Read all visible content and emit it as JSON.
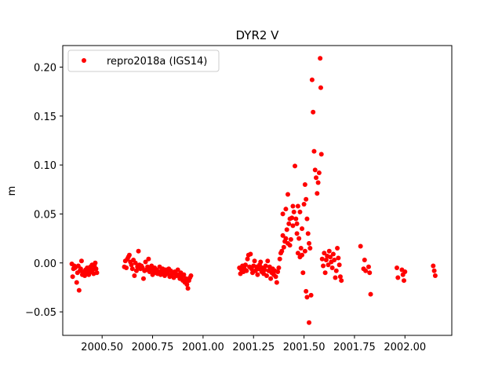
{
  "chart_data": {
    "type": "scatter",
    "title": "DYR2 V",
    "xlabel": "",
    "ylabel": "m",
    "xlim": [
      2000.305,
      2002.232
    ],
    "ylim": [
      -0.074,
      0.222
    ],
    "xticks": [
      2000.5,
      2000.75,
      2001.0,
      2001.25,
      2001.5,
      2001.75,
      2002.0
    ],
    "xtick_labels": [
      "2000.50",
      "2000.75",
      "2001.00",
      "2001.25",
      "2001.50",
      "2001.75",
      "2002.00"
    ],
    "yticks": [
      -0.05,
      0.0,
      0.05,
      0.1,
      0.15,
      0.2
    ],
    "ytick_labels": [
      "−0.05",
      "0.00",
      "0.05",
      "0.10",
      "0.15",
      "0.20"
    ],
    "grid": false,
    "legend_position": "top-left",
    "series": [
      {
        "name": "repro2018a (IGS14)",
        "color": "#ff0000",
        "marker": "circle",
        "points": [
          [
            2000.35,
            -0.001
          ],
          [
            2000.354,
            -0.014
          ],
          [
            2000.358,
            -0.006
          ],
          [
            2000.362,
            -0.003
          ],
          [
            2000.366,
            -0.005
          ],
          [
            2000.37,
            -0.004
          ],
          [
            2000.374,
            -0.02
          ],
          [
            2000.378,
            -0.01
          ],
          [
            2000.382,
            -0.003
          ],
          [
            2000.386,
            -0.028
          ],
          [
            2000.39,
            -0.008
          ],
          [
            2000.394,
            -0.006
          ],
          [
            2000.398,
            0.002
          ],
          [
            2000.402,
            -0.012
          ],
          [
            2000.406,
            -0.01
          ],
          [
            2000.41,
            -0.009
          ],
          [
            2000.414,
            -0.013
          ],
          [
            2000.418,
            -0.007
          ],
          [
            2000.422,
            -0.011
          ],
          [
            2000.426,
            -0.005
          ],
          [
            2000.43,
            -0.008
          ],
          [
            2000.434,
            -0.012
          ],
          [
            2000.438,
            -0.006
          ],
          [
            2000.442,
            -0.004
          ],
          [
            2000.446,
            -0.009
          ],
          [
            2000.45,
            -0.002
          ],
          [
            2000.454,
            -0.007
          ],
          [
            2000.458,
            -0.011
          ],
          [
            2000.462,
            -0.003
          ],
          [
            2000.466,
            0.0
          ],
          [
            2000.47,
            -0.006
          ],
          [
            2000.474,
            -0.01
          ],
          [
            2000.61,
            -0.004
          ],
          [
            2000.615,
            0.002
          ],
          [
            2000.62,
            -0.005
          ],
          [
            2000.625,
            0.004
          ],
          [
            2000.63,
            0.006
          ],
          [
            2000.635,
            0.008
          ],
          [
            2000.64,
            0.001
          ],
          [
            2000.645,
            -0.002
          ],
          [
            2000.65,
            -0.006
          ],
          [
            2000.655,
            0.003
          ],
          [
            2000.66,
            -0.013
          ],
          [
            2000.665,
            0.0
          ],
          [
            2000.67,
            -0.008
          ],
          [
            2000.675,
            -0.004
          ],
          [
            2000.68,
            0.012
          ],
          [
            2000.685,
            -0.002
          ],
          [
            2000.69,
            -0.006
          ],
          [
            2000.695,
            -0.003
          ],
          [
            2000.7,
            -0.005
          ],
          [
            2000.705,
            -0.016
          ],
          [
            2000.71,
            -0.008
          ],
          [
            2000.715,
            0.001
          ],
          [
            2000.72,
            -0.007
          ],
          [
            2000.725,
            -0.004
          ],
          [
            2000.73,
            0.004
          ],
          [
            2000.735,
            -0.009
          ],
          [
            2000.74,
            -0.006
          ],
          [
            2000.745,
            -0.003
          ],
          [
            2000.75,
            -0.012
          ],
          [
            2000.755,
            -0.008
          ],
          [
            2000.76,
            -0.005
          ],
          [
            2000.765,
            -0.01
          ],
          [
            2000.77,
            -0.007
          ],
          [
            2000.775,
            -0.011
          ],
          [
            2000.78,
            -0.009
          ],
          [
            2000.785,
            -0.004
          ],
          [
            2000.79,
            -0.012
          ],
          [
            2000.795,
            -0.008
          ],
          [
            2000.8,
            -0.006
          ],
          [
            2000.805,
            -0.01
          ],
          [
            2000.81,
            -0.013
          ],
          [
            2000.815,
            -0.007
          ],
          [
            2000.82,
            -0.009
          ],
          [
            2000.825,
            -0.011
          ],
          [
            2000.83,
            -0.006
          ],
          [
            2000.835,
            -0.014
          ],
          [
            2000.84,
            -0.008
          ],
          [
            2000.845,
            -0.012
          ],
          [
            2000.85,
            -0.01
          ],
          [
            2000.855,
            -0.015
          ],
          [
            2000.86,
            -0.009
          ],
          [
            2000.865,
            -0.011
          ],
          [
            2000.87,
            -0.013
          ],
          [
            2000.875,
            -0.007
          ],
          [
            2000.88,
            -0.012
          ],
          [
            2000.885,
            -0.016
          ],
          [
            2000.89,
            -0.01
          ],
          [
            2000.895,
            -0.014
          ],
          [
            2000.9,
            -0.018
          ],
          [
            2000.905,
            -0.012
          ],
          [
            2000.91,
            -0.02
          ],
          [
            2000.915,
            -0.016
          ],
          [
            2000.92,
            -0.022
          ],
          [
            2000.925,
            -0.026
          ],
          [
            2000.93,
            -0.018
          ],
          [
            2000.935,
            -0.015
          ],
          [
            2000.94,
            -0.013
          ],
          [
            2001.18,
            -0.005
          ],
          [
            2001.185,
            -0.011
          ],
          [
            2001.19,
            -0.007
          ],
          [
            2001.195,
            -0.003
          ],
          [
            2001.2,
            -0.009
          ],
          [
            2001.205,
            -0.006
          ],
          [
            2001.21,
            -0.002
          ],
          [
            2001.215,
            -0.008
          ],
          [
            2001.22,
            0.004
          ],
          [
            2001.225,
            0.008
          ],
          [
            2001.23,
            -0.004
          ],
          [
            2001.235,
            0.009
          ],
          [
            2001.24,
            -0.006
          ],
          [
            2001.245,
            -0.01
          ],
          [
            2001.25,
            -0.003
          ],
          [
            2001.255,
            0.002
          ],
          [
            2001.26,
            -0.008
          ],
          [
            2001.265,
            -0.004
          ],
          [
            2001.27,
            -0.012
          ],
          [
            2001.275,
            -0.006
          ],
          [
            2001.28,
            -0.002
          ],
          [
            2001.285,
            0.001
          ],
          [
            2001.29,
            -0.009
          ],
          [
            2001.295,
            -0.005
          ],
          [
            2001.3,
            -0.011
          ],
          [
            2001.305,
            -0.007
          ],
          [
            2001.31,
            -0.003
          ],
          [
            2001.315,
            -0.013
          ],
          [
            2001.32,
            0.002
          ],
          [
            2001.325,
            -0.008
          ],
          [
            2001.33,
            -0.004
          ],
          [
            2001.335,
            -0.016
          ],
          [
            2001.34,
            -0.01
          ],
          [
            2001.345,
            -0.006
          ],
          [
            2001.35,
            -0.012
          ],
          [
            2001.355,
            -0.008
          ],
          [
            2001.36,
            -0.014
          ],
          [
            2001.365,
            -0.02
          ],
          [
            2001.37,
            -0.009
          ],
          [
            2001.375,
            -0.005
          ],
          [
            2001.38,
            0.004
          ],
          [
            2001.385,
            0.01
          ],
          [
            2001.39,
            0.012
          ],
          [
            2001.395,
            0.028
          ],
          [
            2001.4,
            0.016
          ],
          [
            2001.405,
            0.022
          ],
          [
            2001.41,
            0.025
          ],
          [
            2001.415,
            0.034
          ],
          [
            2001.42,
            0.02
          ],
          [
            2001.425,
            0.04
          ],
          [
            2001.43,
            0.018
          ],
          [
            2001.435,
            0.024
          ],
          [
            2001.44,
            0.046
          ],
          [
            2001.445,
            0.058
          ],
          [
            2001.45,
            0.052
          ],
          [
            2001.455,
            0.099
          ],
          [
            2001.46,
            0.045
          ],
          [
            2001.465,
            0.03
          ],
          [
            2001.47,
            0.01
          ],
          [
            2001.475,
            0.025
          ],
          [
            2001.48,
            0.006
          ],
          [
            2001.485,
            0.015
          ],
          [
            2001.49,
            0.008
          ],
          [
            2001.495,
            -0.01
          ],
          [
            2001.5,
            0.06
          ],
          [
            2001.505,
            0.08
          ],
          [
            2001.51,
            0.065
          ],
          [
            2001.515,
            0.045
          ],
          [
            2001.52,
            0.03
          ],
          [
            2001.525,
            0.02
          ],
          [
            2001.53,
            0.015
          ],
          [
            2001.54,
            0.187
          ],
          [
            2001.545,
            0.154
          ],
          [
            2001.55,
            0.114
          ],
          [
            2001.555,
            0.095
          ],
          [
            2001.56,
            0.087
          ],
          [
            2001.565,
            0.071
          ],
          [
            2001.57,
            0.082
          ],
          [
            2001.575,
            0.092
          ],
          [
            2001.58,
            0.209
          ],
          [
            2001.583,
            0.179
          ],
          [
            2001.586,
            0.111
          ],
          [
            2001.59,
            0.004
          ],
          [
            2001.595,
            -0.003
          ],
          [
            2001.6,
            0.01
          ],
          [
            2001.605,
            -0.01
          ],
          [
            2001.61,
            0.003
          ],
          [
            2001.615,
            0.007
          ],
          [
            2001.62,
            -0.002
          ],
          [
            2001.625,
            0.012
          ],
          [
            2001.63,
            0.006
          ],
          [
            2001.635,
            0.001
          ],
          [
            2001.64,
            -0.005
          ],
          [
            2001.645,
            0.009
          ],
          [
            2001.65,
            0.003
          ],
          [
            2001.655,
            -0.015
          ],
          [
            2001.66,
            -0.008
          ],
          [
            2001.665,
            0.015
          ],
          [
            2001.67,
            0.005
          ],
          [
            2001.675,
            -0.002
          ],
          [
            2001.68,
            -0.014
          ],
          [
            2001.685,
            -0.018
          ],
          [
            2001.78,
            0.017
          ],
          [
            2001.795,
            -0.006
          ],
          [
            2001.8,
            0.003
          ],
          [
            2001.805,
            -0.008
          ],
          [
            2001.82,
            -0.004
          ],
          [
            2001.825,
            -0.01
          ],
          [
            2001.83,
            -0.032
          ],
          [
            2001.96,
            -0.005
          ],
          [
            2001.965,
            -0.015
          ],
          [
            2001.985,
            -0.007
          ],
          [
            2001.99,
            -0.012
          ],
          [
            2001.995,
            -0.018
          ],
          [
            2002.0,
            -0.009
          ],
          [
            2002.14,
            -0.003
          ],
          [
            2002.145,
            -0.008
          ],
          [
            2002.15,
            -0.013
          ],
          [
            2001.395,
            0.05
          ],
          [
            2001.41,
            0.055
          ],
          [
            2001.42,
            0.07
          ],
          [
            2001.43,
            0.045
          ],
          [
            2001.445,
            0.038
          ],
          [
            2001.465,
            0.04
          ],
          [
            2001.47,
            0.058
          ],
          [
            2001.48,
            0.052
          ],
          [
            2001.49,
            0.035
          ],
          [
            2001.505,
            0.012
          ],
          [
            2001.51,
            -0.029
          ],
          [
            2001.515,
            -0.035
          ],
          [
            2001.525,
            -0.061
          ],
          [
            2001.535,
            -0.033
          ]
        ]
      }
    ]
  }
}
